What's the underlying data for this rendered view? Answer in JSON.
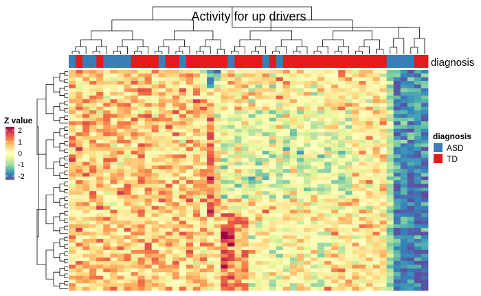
{
  "chart_data": {
    "type": "heatmap",
    "title": "Activity for up drivers",
    "annotation_label": "diagnosis",
    "colorbar": {
      "title": "Z value",
      "ticks": [
        2,
        1,
        0,
        -1,
        -2
      ],
      "tick_labels": [
        "2",
        "1",
        "0",
        "-1",
        "-2"
      ],
      "range": [
        -2.3,
        2.3
      ],
      "palette": [
        "#5E4FA2",
        "#3288BD",
        "#66C2A5",
        "#ABDDA4",
        "#E6F598",
        "#FFFFBF",
        "#FEE08B",
        "#FDAE61",
        "#F46D43",
        "#D53E4F",
        "#9E0142"
      ]
    },
    "legend": {
      "title": "diagnosis",
      "placement": "right",
      "items": [
        {
          "label": "ASD",
          "color": "#3A7EB8"
        },
        {
          "label": "TD",
          "color": "#E41A1C"
        }
      ]
    },
    "n_rows": 60,
    "n_cols": 52,
    "column_diagnosis": [
      "ASD",
      "TD",
      "ASD",
      "ASD",
      "TD",
      "ASD",
      "ASD",
      "ASD",
      "ASD",
      "TD",
      "TD",
      "TD",
      "TD",
      "ASD",
      "TD",
      "TD",
      "ASD",
      "TD",
      "TD",
      "TD",
      "TD",
      "TD",
      "TD",
      "ASD",
      "TD",
      "TD",
      "TD",
      "TD",
      "ASD",
      "TD",
      "ASD",
      "TD",
      "TD",
      "TD",
      "TD",
      "TD",
      "TD",
      "TD",
      "TD",
      "TD",
      "TD",
      "TD",
      "TD",
      "TD",
      "TD",
      "TD",
      "ASD",
      "ASD",
      "ASD",
      "ASD",
      "TD",
      "TD"
    ],
    "zero_reference": 0,
    "row_dendrogram": "hierarchical clustering (left)",
    "column_dendrogram": "hierarchical clustering (top)"
  }
}
